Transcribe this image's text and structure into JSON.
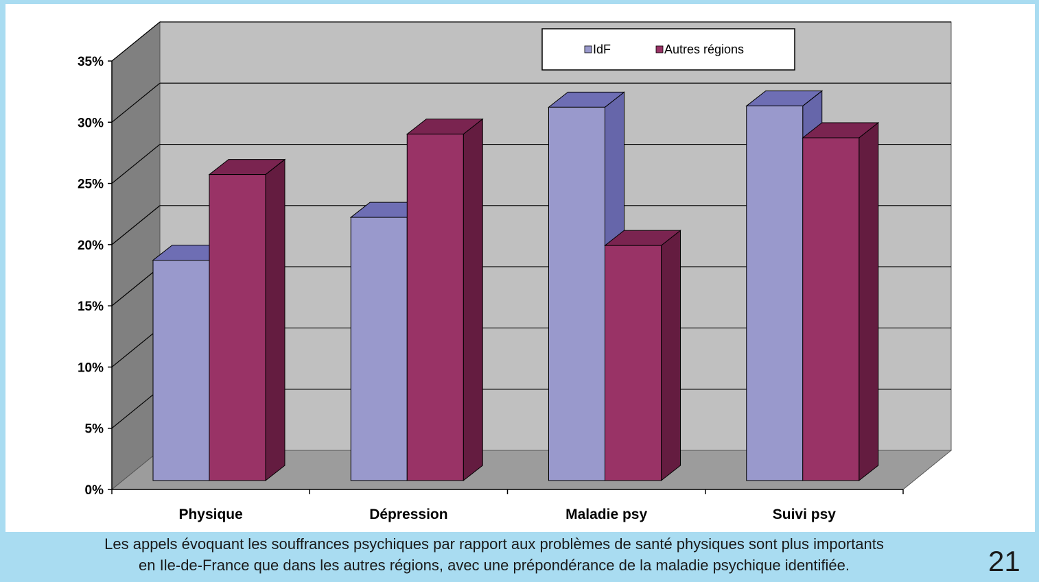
{
  "chart_data": {
    "type": "bar",
    "categories": [
      "Physique",
      "Dépression",
      "Maladie psy",
      "Suivi psy"
    ],
    "series": [
      {
        "name": "IdF",
        "values": [
          18,
          21.5,
          30.5,
          30.6
        ]
      },
      {
        "name": "Autres régions",
        "values": [
          25,
          28.3,
          19.2,
          28
        ]
      }
    ],
    "ylim": [
      0,
      35
    ],
    "yticks": [
      "0%",
      "5%",
      "10%",
      "15%",
      "20%",
      "25%",
      "30%",
      "35%"
    ],
    "grid": true,
    "legend_position": "top-right",
    "style": "3d-clustered-column",
    "colors": {
      "IdF": {
        "front": "#9999cc",
        "top": "#6e6eb4",
        "side": "#6666aa"
      },
      "Autres régions": {
        "front": "#993366",
        "top": "#7a2450",
        "side": "#641c40"
      }
    }
  },
  "caption": {
    "line1": "Les appels évoquant les souffrances psychiques par rapport aux problèmes de santé physiques sont plus importants",
    "line2": "en Ile-de-France que dans les autres régions, avec une prépondérance de la maladie psychique identifiée."
  },
  "page_number": "21"
}
